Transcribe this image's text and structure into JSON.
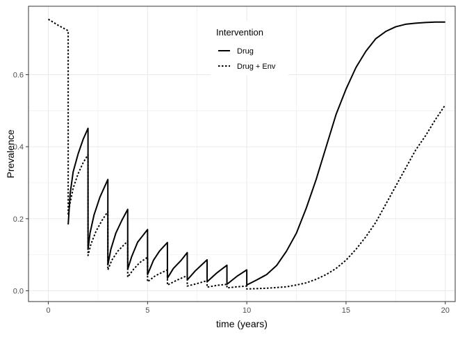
{
  "chart_data": {
    "type": "line",
    "xlabel": "time (years)",
    "ylabel": "Prevalence",
    "xlim": [
      -1,
      20.5
    ],
    "ylim": [
      -0.03,
      0.79
    ],
    "x_ticks": [
      0,
      5,
      10,
      15,
      20
    ],
    "x_tick_labels": [
      "0",
      "5",
      "10",
      "15",
      "20"
    ],
    "y_ticks": [
      0.0,
      0.2,
      0.4,
      0.6
    ],
    "y_tick_labels": [
      "0.0",
      "0.2",
      "0.4",
      "0.6"
    ],
    "grid": true,
    "legend": {
      "title": "Intervention",
      "placement": "top-center"
    },
    "series": [
      {
        "name": "Drug",
        "style": "solid",
        "points": [
          [
            1.0,
            0.184
          ],
          [
            1.1,
            0.27
          ],
          [
            1.25,
            0.33
          ],
          [
            1.5,
            0.38
          ],
          [
            1.75,
            0.42
          ],
          [
            1.999,
            0.451
          ],
          [
            2.0,
            0.115
          ],
          [
            2.1,
            0.16
          ],
          [
            2.3,
            0.21
          ],
          [
            2.6,
            0.26
          ],
          [
            2.999,
            0.309
          ],
          [
            3.0,
            0.072
          ],
          [
            3.15,
            0.115
          ],
          [
            3.4,
            0.16
          ],
          [
            3.7,
            0.195
          ],
          [
            3.999,
            0.226
          ],
          [
            4.0,
            0.06
          ],
          [
            4.2,
            0.095
          ],
          [
            4.5,
            0.135
          ],
          [
            4.999,
            0.17
          ],
          [
            5.0,
            0.045
          ],
          [
            5.3,
            0.085
          ],
          [
            5.6,
            0.11
          ],
          [
            5.999,
            0.134
          ],
          [
            6.0,
            0.035
          ],
          [
            6.3,
            0.062
          ],
          [
            6.7,
            0.085
          ],
          [
            6.999,
            0.106
          ],
          [
            7.0,
            0.03
          ],
          [
            7.4,
            0.055
          ],
          [
            7.999,
            0.086
          ],
          [
            8.0,
            0.025
          ],
          [
            8.5,
            0.05
          ],
          [
            8.999,
            0.071
          ],
          [
            9.0,
            0.018
          ],
          [
            9.5,
            0.04
          ],
          [
            9.999,
            0.058
          ],
          [
            10.0,
            0.016
          ],
          [
            10.5,
            0.03
          ],
          [
            11.0,
            0.045
          ],
          [
            11.5,
            0.07
          ],
          [
            12.0,
            0.11
          ],
          [
            12.5,
            0.16
          ],
          [
            13.0,
            0.23
          ],
          [
            13.5,
            0.31
          ],
          [
            14.0,
            0.4
          ],
          [
            14.5,
            0.49
          ],
          [
            15.0,
            0.56
          ],
          [
            15.5,
            0.62
          ],
          [
            16.0,
            0.665
          ],
          [
            16.5,
            0.7
          ],
          [
            17.0,
            0.72
          ],
          [
            17.5,
            0.733
          ],
          [
            18.0,
            0.74
          ],
          [
            18.5,
            0.743
          ],
          [
            19.0,
            0.745
          ],
          [
            19.5,
            0.746
          ],
          [
            20.0,
            0.746
          ]
        ]
      },
      {
        "name": "Drug + Env",
        "style": "dotted",
        "points": [
          [
            0.0,
            0.754
          ],
          [
            0.5,
            0.737
          ],
          [
            0.999,
            0.722
          ],
          [
            1.0,
            0.21
          ],
          [
            1.1,
            0.245
          ],
          [
            1.25,
            0.285
          ],
          [
            1.5,
            0.325
          ],
          [
            1.75,
            0.355
          ],
          [
            1.999,
            0.378
          ],
          [
            2.0,
            0.098
          ],
          [
            2.15,
            0.13
          ],
          [
            2.4,
            0.165
          ],
          [
            2.7,
            0.195
          ],
          [
            2.999,
            0.22
          ],
          [
            3.0,
            0.058
          ],
          [
            3.2,
            0.085
          ],
          [
            3.5,
            0.11
          ],
          [
            3.999,
            0.138
          ],
          [
            4.0,
            0.038
          ],
          [
            4.3,
            0.06
          ],
          [
            4.6,
            0.078
          ],
          [
            4.999,
            0.093
          ],
          [
            5.0,
            0.025
          ],
          [
            5.4,
            0.042
          ],
          [
            5.999,
            0.058
          ],
          [
            6.0,
            0.016
          ],
          [
            6.5,
            0.03
          ],
          [
            6.999,
            0.042
          ],
          [
            7.0,
            0.013
          ],
          [
            7.5,
            0.02
          ],
          [
            7.999,
            0.028
          ],
          [
            8.0,
            0.01
          ],
          [
            8.5,
            0.015
          ],
          [
            8.999,
            0.018
          ],
          [
            9.0,
            0.008
          ],
          [
            9.5,
            0.011
          ],
          [
            9.999,
            0.013
          ],
          [
            10.0,
            0.005
          ],
          [
            11.0,
            0.007
          ],
          [
            12.0,
            0.011
          ],
          [
            12.5,
            0.016
          ],
          [
            13.0,
            0.022
          ],
          [
            13.5,
            0.032
          ],
          [
            14.0,
            0.045
          ],
          [
            14.5,
            0.062
          ],
          [
            15.0,
            0.085
          ],
          [
            15.5,
            0.115
          ],
          [
            16.0,
            0.15
          ],
          [
            16.5,
            0.19
          ],
          [
            17.0,
            0.24
          ],
          [
            17.5,
            0.29
          ],
          [
            18.0,
            0.34
          ],
          [
            18.5,
            0.39
          ],
          [
            19.0,
            0.43
          ],
          [
            19.5,
            0.475
          ],
          [
            20.0,
            0.516
          ]
        ]
      }
    ]
  }
}
